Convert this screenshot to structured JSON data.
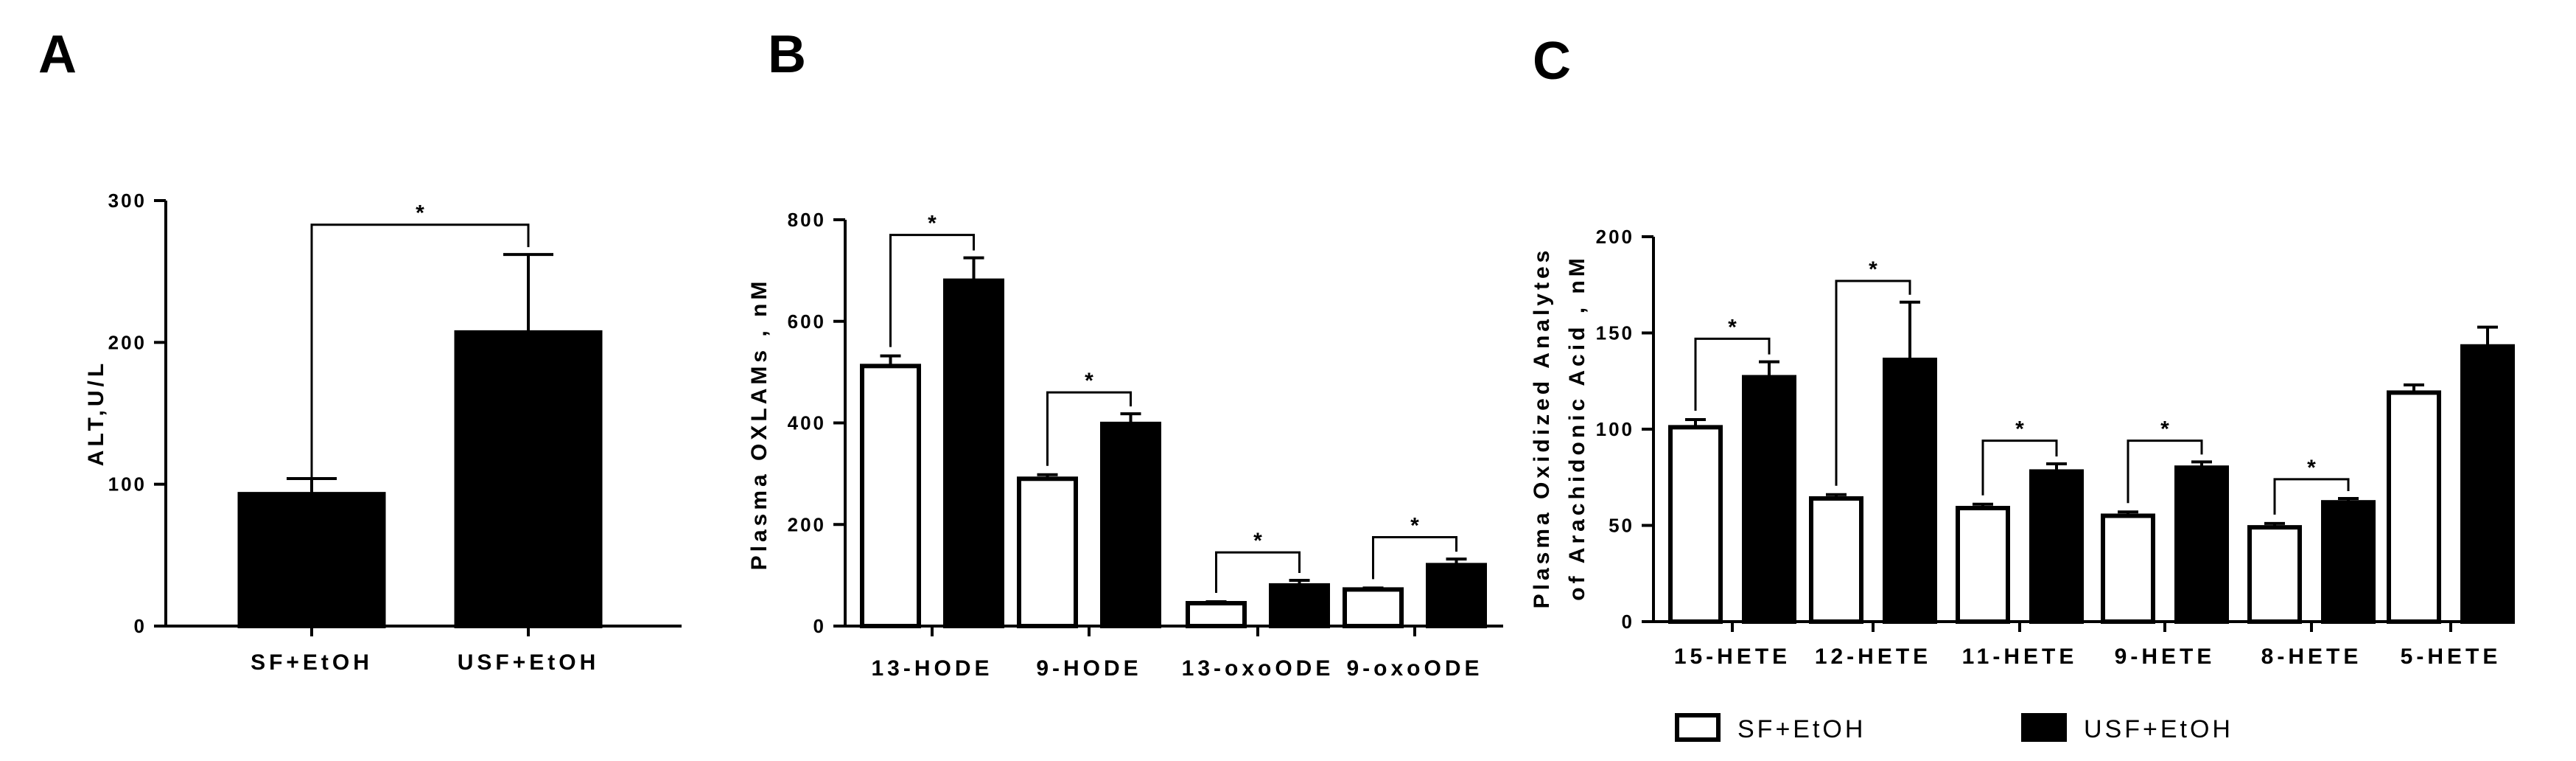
{
  "colors": {
    "sf": "#ffffff",
    "usf": "#000000",
    "ink": "#000000"
  },
  "legend": {
    "sf_label": "SF+EtOH",
    "usf_label": "USF+EtOH"
  },
  "chart_data": [
    {
      "panel": "A",
      "type": "bar",
      "title": "",
      "xlabel": "",
      "ylabel": "ALT,U/L",
      "ylim": [
        0,
        300
      ],
      "yticks": [
        0,
        100,
        200,
        300
      ],
      "categories": [
        "SF+EtOH",
        "USF+EtOH"
      ],
      "bars": [
        {
          "category": "SF+EtOH",
          "group": "sf",
          "value": 93,
          "error": 11,
          "fill": "#000000"
        },
        {
          "category": "USF+EtOH",
          "group": "usf",
          "value": 207,
          "error": 55,
          "fill": "#000000"
        }
      ],
      "significance": [
        {
          "from": 0,
          "to": 1,
          "label": "*",
          "top": 283
        }
      ]
    },
    {
      "panel": "B",
      "type": "bar",
      "title": "",
      "xlabel": "",
      "ylabel": "Plasma OXLAMs , nM",
      "ylim": [
        0,
        800
      ],
      "yticks": [
        0,
        200,
        400,
        600,
        800
      ],
      "categories": [
        "13-HODE",
        "9-HODE",
        "13-oxoODE",
        "9-oxoODE"
      ],
      "series": [
        {
          "name": "SF+EtOH",
          "values": [
            512,
            290,
            45,
            72
          ],
          "errors": [
            20,
            8,
            3,
            3
          ]
        },
        {
          "name": "USF+EtOH",
          "values": [
            680,
            398,
            80,
            120
          ],
          "errors": [
            45,
            20,
            10,
            12
          ]
        }
      ],
      "significance": [
        {
          "category": 0,
          "label": "*",
          "top": 770
        },
        {
          "category": 1,
          "label": "*",
          "top": 460
        },
        {
          "category": 2,
          "label": "*",
          "top": 145
        },
        {
          "category": 3,
          "label": "*",
          "top": 175
        }
      ]
    },
    {
      "panel": "C",
      "type": "bar",
      "title": "",
      "xlabel": "",
      "ylabel": [
        "Plasma Oxidized Analytes",
        "of Arachidonic  Acid , nM"
      ],
      "ylim": [
        0,
        200
      ],
      "yticks": [
        0,
        50,
        100,
        150,
        200
      ],
      "categories": [
        "15-HETE",
        "12-HETE",
        "11-HETE",
        "9-HETE",
        "8-HETE",
        "5-HETE"
      ],
      "series": [
        {
          "name": "SF+EtOH",
          "values": [
            101,
            64,
            59,
            55,
            49,
            119
          ],
          "errors": [
            4,
            2,
            2,
            2,
            2,
            4
          ]
        },
        {
          "name": "USF+EtOH",
          "values": [
            127,
            136,
            78,
            80,
            62,
            143
          ],
          "errors": [
            8,
            30,
            4,
            3,
            2,
            10
          ]
        }
      ],
      "significance": [
        {
          "category": 0,
          "label": "*",
          "top": 147
        },
        {
          "category": 1,
          "label": "*",
          "top": 177
        },
        {
          "category": 2,
          "label": "*",
          "top": 94
        },
        {
          "category": 3,
          "label": "*",
          "top": 94
        },
        {
          "category": 4,
          "label": "*",
          "top": 74
        }
      ]
    }
  ]
}
